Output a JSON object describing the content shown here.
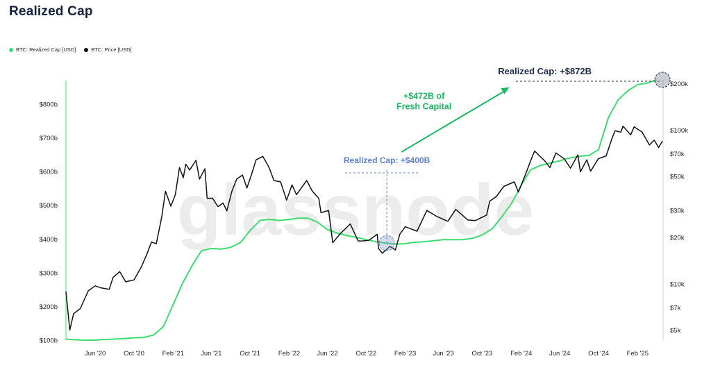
{
  "title": "Realized Cap",
  "watermark": "glassnode",
  "legend": [
    {
      "label": "BTC: Realized Cap [USD]",
      "color": "#3ddc6f"
    },
    {
      "label": "BTC: Price [USD]",
      "color": "#111111"
    }
  ],
  "annotations": {
    "fresh_capital_line1": "+$472B of",
    "fresh_capital_line2": "Fresh Capital",
    "low_label": "Realized Cap: +$400B",
    "high_label": "Realized Cap: +$872B"
  },
  "colors": {
    "realized_cap": "#3ddc6f",
    "price": "#111111",
    "annotation_green": "#1bb863",
    "annotation_blue": "#5a7fd1"
  },
  "chart_data": {
    "type": "line",
    "title": "Realized Cap",
    "x_ticks": [
      "Jun '20",
      "Oct '20",
      "Feb '21",
      "Jun '21",
      "Oct '21",
      "Feb '22",
      "Jun '22",
      "Oct '22",
      "Feb '23",
      "Jun '23",
      "Oct '23",
      "Feb '24",
      "Jun '24",
      "Oct '24",
      "Feb '25"
    ],
    "x_tick_values": [
      "2020-06",
      "2020-10",
      "2021-02",
      "2021-06",
      "2021-10",
      "2022-02",
      "2022-06",
      "2022-10",
      "2023-02",
      "2023-06",
      "2023-10",
      "2024-02",
      "2024-06",
      "2024-10",
      "2025-02"
    ],
    "y_left": {
      "label": "",
      "ticks": [
        "$100b",
        "$200b",
        "$300b",
        "$400b",
        "$500b",
        "$600b",
        "$700b",
        "$800b"
      ],
      "tick_values": [
        100,
        200,
        300,
        400,
        500,
        600,
        700,
        800
      ],
      "range": [
        100,
        870
      ],
      "unit": "billion USD"
    },
    "y_right": {
      "label": "",
      "scale": "log",
      "ticks": [
        "$5k",
        "$7k",
        "$10k",
        "$20k",
        "$30k",
        "$50k",
        "$70k",
        "$100k",
        "$200k"
      ],
      "tick_values": [
        5000,
        7000,
        10000,
        20000,
        30000,
        50000,
        70000,
        100000,
        200000
      ],
      "range": [
        4300,
        210000
      ],
      "unit": "USD"
    },
    "grid": false,
    "legend_position": "top-left",
    "series": [
      {
        "name": "BTC: Realized Cap [USD]",
        "axis": "left",
        "color": "#3ddc6f",
        "x": [
          "2020-03",
          "2020-04",
          "2020-05",
          "2020-06",
          "2020-07",
          "2020-08",
          "2020-09",
          "2020-10",
          "2020-11",
          "2020-12",
          "2021-01",
          "2021-02",
          "2021-03",
          "2021-04",
          "2021-05",
          "2021-06",
          "2021-07",
          "2021-08",
          "2021-09",
          "2021-10",
          "2021-11",
          "2021-12",
          "2022-01",
          "2022-02",
          "2022-03",
          "2022-04",
          "2022-05",
          "2022-06",
          "2022-07",
          "2022-08",
          "2022-09",
          "2022-10",
          "2022-11",
          "2022-12",
          "2023-01",
          "2023-02",
          "2023-03",
          "2023-04",
          "2023-05",
          "2023-06",
          "2023-07",
          "2023-08",
          "2023-09",
          "2023-10",
          "2023-11",
          "2023-12",
          "2024-01",
          "2024-02",
          "2024-03",
          "2024-04",
          "2024-05",
          "2024-06",
          "2024-07",
          "2024-08",
          "2024-09",
          "2024-10",
          "2024-11",
          "2024-12",
          "2025-01",
          "2025-02",
          "2025-03",
          "2025-04"
        ],
        "values": [
          103,
          101,
          100,
          100,
          102,
          103,
          105,
          107,
          108,
          115,
          140,
          205,
          265,
          320,
          365,
          372,
          370,
          375,
          390,
          425,
          455,
          458,
          455,
          458,
          462,
          462,
          450,
          428,
          418,
          410,
          405,
          398,
          392,
          388,
          385,
          386,
          390,
          392,
          395,
          398,
          398,
          398,
          402,
          412,
          430,
          465,
          505,
          560,
          605,
          618,
          625,
          632,
          640,
          645,
          648,
          665,
          760,
          812,
          840,
          858,
          862,
          872
        ]
      },
      {
        "name": "BTC: Price [USD]",
        "axis": "right",
        "color": "#111111",
        "x": [
          "2020-03-01",
          "2020-03-13",
          "2020-03-25",
          "2020-04-15",
          "2020-05-10",
          "2020-06-01",
          "2020-06-20",
          "2020-07-15",
          "2020-07-27",
          "2020-08-17",
          "2020-09-05",
          "2020-10-01",
          "2020-10-25",
          "2020-11-10",
          "2020-11-25",
          "2020-12-10",
          "2020-12-27",
          "2021-01-08",
          "2021-01-25",
          "2021-02-08",
          "2021-02-21",
          "2021-03-05",
          "2021-03-13",
          "2021-03-25",
          "2021-04-14",
          "2021-04-25",
          "2021-05-12",
          "2021-05-19",
          "2021-06-05",
          "2021-06-22",
          "2021-07-08",
          "2021-07-20",
          "2021-08-05",
          "2021-08-20",
          "2021-09-07",
          "2021-09-21",
          "2021-10-05",
          "2021-10-20",
          "2021-11-10",
          "2021-11-30",
          "2021-12-15",
          "2022-01-05",
          "2022-01-24",
          "2022-02-10",
          "2022-02-24",
          "2022-03-28",
          "2022-04-15",
          "2022-05-05",
          "2022-05-12",
          "2022-06-05",
          "2022-06-18",
          "2022-07-10",
          "2022-08-12",
          "2022-09-06",
          "2022-09-20",
          "2022-10-10",
          "2022-11-05",
          "2022-11-09",
          "2022-11-21",
          "2022-12-15",
          "2023-01-01",
          "2023-01-15",
          "2023-02-01",
          "2023-03-10",
          "2023-04-10",
          "2023-05-10",
          "2023-06-15",
          "2023-07-10",
          "2023-08-17",
          "2023-09-10",
          "2023-10-15",
          "2023-10-25",
          "2023-11-15",
          "2023-12-08",
          "2024-01-10",
          "2024-01-23",
          "2024-02-15",
          "2024-03-05",
          "2024-03-14",
          "2024-04-15",
          "2024-05-01",
          "2024-05-20",
          "2024-06-15",
          "2024-07-05",
          "2024-07-28",
          "2024-08-05",
          "2024-08-25",
          "2024-09-06",
          "2024-09-30",
          "2024-10-25",
          "2024-11-12",
          "2024-11-22",
          "2024-12-10",
          "2024-12-17",
          "2025-01-10",
          "2025-01-21",
          "2025-02-15",
          "2025-03-10",
          "2025-03-25",
          "2025-04-08",
          "2025-04-20"
        ],
        "values": [
          8900,
          5000,
          6400,
          6900,
          9000,
          9700,
          9400,
          9200,
          11000,
          12000,
          10300,
          10600,
          13000,
          15500,
          18700,
          18200,
          27000,
          40000,
          32000,
          38000,
          57000,
          49000,
          60000,
          55000,
          63500,
          48000,
          56000,
          36000,
          36000,
          31800,
          33500,
          29800,
          40000,
          48000,
          51000,
          42000,
          51000,
          64000,
          67500,
          57000,
          47000,
          46000,
          35000,
          44000,
          38000,
          47000,
          40000,
          36000,
          29000,
          30000,
          18500,
          21000,
          24500,
          19000,
          19000,
          19200,
          21000,
          17000,
          15800,
          17500,
          16600,
          21000,
          23500,
          22000,
          30000,
          27500,
          25500,
          30500,
          26000,
          25800,
          28000,
          34500,
          37000,
          43000,
          46000,
          39500,
          52000,
          66000,
          73000,
          63000,
          57000,
          71000,
          65000,
          56500,
          69000,
          53500,
          64000,
          54000,
          65000,
          68000,
          88000,
          99000,
          97000,
          106000,
          93000,
          105000,
          97000,
          80000,
          86000,
          77000,
          85000
        ]
      }
    ]
  }
}
